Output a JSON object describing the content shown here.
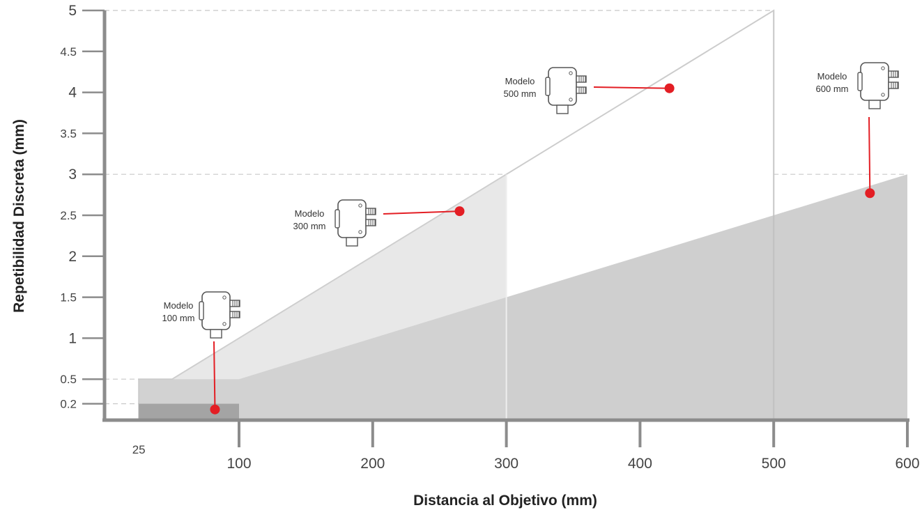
{
  "chart_data": {
    "type": "area",
    "xlabel": "Distancia al Objetivo (mm)",
    "ylabel": "Repetibilidad Discreta (mm)",
    "xlim": [
      25,
      600
    ],
    "ylim": [
      0,
      5
    ],
    "x_ticks": [
      25,
      100,
      200,
      300,
      400,
      500,
      600
    ],
    "y_ticks": [
      0.2,
      0.5,
      1,
      1.5,
      2,
      2.5,
      3,
      3.5,
      4,
      4.5,
      5
    ],
    "grid": false,
    "series": [
      {
        "model_line1": "Modelo",
        "model_line2": "100 mm",
        "x": [
          25,
          100
        ],
        "y": [
          0.2,
          0.2
        ],
        "marker": {
          "x": 82,
          "y": 0.13
        }
      },
      {
        "model_line1": "Modelo",
        "model_line2": "300 mm",
        "x": [
          25,
          50,
          300
        ],
        "y": [
          0.5,
          0.5,
          3
        ],
        "marker": {
          "x": 265,
          "y": 2.55
        }
      },
      {
        "model_line1": "Modelo",
        "model_line2": "500 mm",
        "x": [
          25,
          50,
          500
        ],
        "y": [
          0.5,
          0.5,
          5
        ],
        "marker": {
          "x": 422,
          "y": 4.05
        }
      },
      {
        "model_line1": "Modelo",
        "model_line2": "600 mm",
        "x": [
          25,
          100,
          600
        ],
        "y": [
          0.5,
          0.5,
          3
        ],
        "marker": {
          "x": 572,
          "y": 2.77
        }
      }
    ]
  },
  "colors": {
    "axis": "#8c8c8c",
    "fill_600": "#bfbfbf",
    "fill_300": "#d6d6d6",
    "fill_100": "#9e9e9e",
    "outline": "#cccccc",
    "marker": "#e31e24",
    "guide": "#c8c8c8"
  },
  "icons": [
    "sensor-device-icon"
  ]
}
